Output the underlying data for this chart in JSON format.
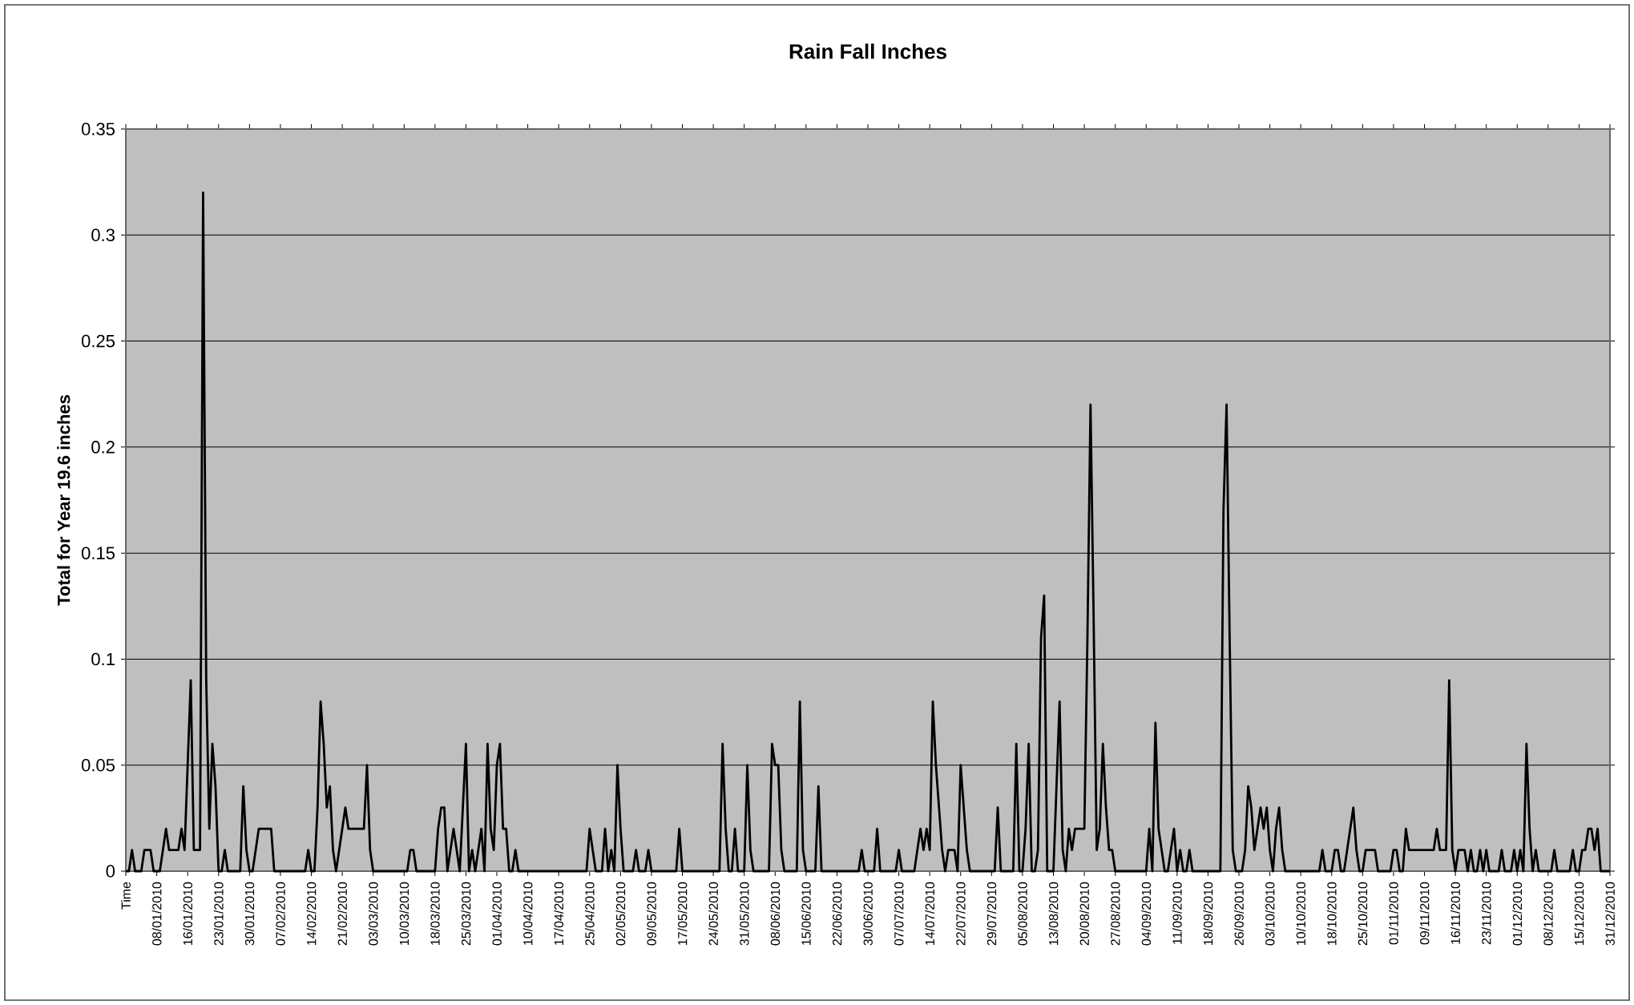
{
  "chart_data": {
    "type": "line",
    "title": "Rain Fall Inches",
    "ylabel": "Total for Year 19.6 inches",
    "color": "#000000",
    "grid": "y",
    "ylim": [
      0,
      0.35
    ],
    "yticks": [
      0,
      0.05,
      0.1,
      0.15,
      0.2,
      0.25,
      0.3,
      0.35
    ],
    "categories": [
      "Time",
      null,
      null,
      null,
      null,
      null,
      null,
      null,
      null,
      null,
      "08/01/2010",
      null,
      null,
      null,
      null,
      null,
      null,
      null,
      null,
      null,
      "16/01/2010",
      null,
      null,
      null,
      null,
      null,
      null,
      null,
      null,
      null,
      "23/01/2010",
      null,
      null,
      null,
      null,
      null,
      null,
      null,
      null,
      null,
      "30/01/2010",
      null,
      null,
      null,
      null,
      null,
      null,
      null,
      null,
      null,
      "07/02/2010",
      null,
      null,
      null,
      null,
      null,
      null,
      null,
      null,
      null,
      "14/02/2010",
      null,
      null,
      null,
      null,
      null,
      null,
      null,
      null,
      null,
      "21/02/2010",
      null,
      null,
      null,
      null,
      null,
      null,
      null,
      null,
      null,
      "03/03/2010",
      null,
      null,
      null,
      null,
      null,
      null,
      null,
      null,
      null,
      "10/03/2010",
      null,
      null,
      null,
      null,
      null,
      null,
      null,
      null,
      null,
      "18/03/2010",
      null,
      null,
      null,
      null,
      null,
      null,
      null,
      null,
      null,
      "25/03/2010",
      null,
      null,
      null,
      null,
      null,
      null,
      null,
      null,
      null,
      "01/04/2010",
      null,
      null,
      null,
      null,
      null,
      null,
      null,
      null,
      null,
      "10/04/2010",
      null,
      null,
      null,
      null,
      null,
      null,
      null,
      null,
      null,
      "17/04/2010",
      null,
      null,
      null,
      null,
      null,
      null,
      null,
      null,
      null,
      "25/04/2010",
      null,
      null,
      null,
      null,
      null,
      null,
      null,
      null,
      null,
      "02/05/2010",
      null,
      null,
      null,
      null,
      null,
      null,
      null,
      null,
      null,
      "09/05/2010",
      null,
      null,
      null,
      null,
      null,
      null,
      null,
      null,
      null,
      "17/05/2010",
      null,
      null,
      null,
      null,
      null,
      null,
      null,
      null,
      null,
      "24/05/2010",
      null,
      null,
      null,
      null,
      null,
      null,
      null,
      null,
      null,
      "31/05/2010",
      null,
      null,
      null,
      null,
      null,
      null,
      null,
      null,
      null,
      "08/06/2010",
      null,
      null,
      null,
      null,
      null,
      null,
      null,
      null,
      null,
      "15/06/2010",
      null,
      null,
      null,
      null,
      null,
      null,
      null,
      null,
      null,
      "22/06/2010",
      null,
      null,
      null,
      null,
      null,
      null,
      null,
      null,
      null,
      "30/06/2010",
      null,
      null,
      null,
      null,
      null,
      null,
      null,
      null,
      null,
      "07/07/2010",
      null,
      null,
      null,
      null,
      null,
      null,
      null,
      null,
      null,
      "14/07/2010",
      null,
      null,
      null,
      null,
      null,
      null,
      null,
      null,
      null,
      "22/07/2010",
      null,
      null,
      null,
      null,
      null,
      null,
      null,
      null,
      null,
      "29/07/2010",
      null,
      null,
      null,
      null,
      null,
      null,
      null,
      null,
      null,
      "05/08/2010",
      null,
      null,
      null,
      null,
      null,
      null,
      null,
      null,
      null,
      "13/08/2010",
      null,
      null,
      null,
      null,
      null,
      null,
      null,
      null,
      null,
      "20/08/2010",
      null,
      null,
      null,
      null,
      null,
      null,
      null,
      null,
      null,
      "27/08/2010",
      null,
      null,
      null,
      null,
      null,
      null,
      null,
      null,
      null,
      "04/09/2010",
      null,
      null,
      null,
      null,
      null,
      null,
      null,
      null,
      null,
      "11/09/2010",
      null,
      null,
      null,
      null,
      null,
      null,
      null,
      null,
      null,
      "18/09/2010",
      null,
      null,
      null,
      null,
      null,
      null,
      null,
      null,
      null,
      "26/09/2010",
      null,
      null,
      null,
      null,
      null,
      null,
      null,
      null,
      null,
      "03/10/2010",
      null,
      null,
      null,
      null,
      null,
      null,
      null,
      null,
      null,
      "10/10/2010",
      null,
      null,
      null,
      null,
      null,
      null,
      null,
      null,
      null,
      "18/10/2010",
      null,
      null,
      null,
      null,
      null,
      null,
      null,
      null,
      null,
      "25/10/2010",
      null,
      null,
      null,
      null,
      null,
      null,
      null,
      null,
      null,
      "01/11/2010",
      null,
      null,
      null,
      null,
      null,
      null,
      null,
      null,
      null,
      "09/11/2010",
      null,
      null,
      null,
      null,
      null,
      null,
      null,
      null,
      null,
      "16/11/2010",
      null,
      null,
      null,
      null,
      null,
      null,
      null,
      null,
      null,
      "23/11/2010",
      null,
      null,
      null,
      null,
      null,
      null,
      null,
      null,
      null,
      "01/12/2010",
      null,
      null,
      null,
      null,
      null,
      null,
      null,
      null,
      null,
      "08/12/2010",
      null,
      null,
      null,
      null,
      null,
      null,
      null,
      null,
      null,
      "15/12/2010",
      null,
      null,
      null,
      null,
      null,
      null,
      null,
      null,
      null,
      "31/12/2010"
    ],
    "values": [
      0,
      0,
      0.01,
      0,
      0,
      0,
      0.01,
      0.01,
      0.01,
      0,
      0,
      0,
      0.01,
      0.02,
      0.01,
      0.01,
      0.01,
      0.01,
      0.02,
      0.01,
      0.05,
      0.09,
      0.01,
      0.01,
      0.01,
      0.32,
      0.09,
      0.02,
      0.06,
      0.04,
      0,
      0,
      0.01,
      0,
      0,
      0,
      0,
      0,
      0.04,
      0.01,
      0,
      0,
      0.01,
      0.02,
      0.02,
      0.02,
      0.02,
      0.02,
      0,
      0,
      0,
      0,
      0,
      0,
      0,
      0,
      0,
      0,
      0,
      0.01,
      0,
      0,
      0.03,
      0.08,
      0.06,
      0.03,
      0.04,
      0.01,
      0,
      0.01,
      0.02,
      0.03,
      0.02,
      0.02,
      0.02,
      0.02,
      0.02,
      0.02,
      0.05,
      0.01,
      0,
      0,
      0,
      0,
      0,
      0,
      0,
      0,
      0,
      0,
      0,
      0,
      0.01,
      0.01,
      0,
      0,
      0,
      0,
      0,
      0,
      0,
      0.02,
      0.03,
      0.03,
      0,
      0.01,
      0.02,
      0.01,
      0,
      0.03,
      0.06,
      0,
      0.01,
      0,
      0.01,
      0.02,
      0,
      0.06,
      0.02,
      0.01,
      0.05,
      0.06,
      0.02,
      0.02,
      0,
      0,
      0.01,
      0,
      0,
      0,
      0,
      0,
      0,
      0,
      0,
      0,
      0,
      0,
      0,
      0,
      0,
      0,
      0,
      0,
      0,
      0,
      0,
      0,
      0,
      0,
      0.02,
      0.01,
      0,
      0,
      0,
      0.02,
      0,
      0.01,
      0,
      0.05,
      0.02,
      0,
      0,
      0,
      0,
      0.01,
      0,
      0,
      0,
      0.01,
      0,
      0,
      0,
      0,
      0,
      0,
      0,
      0,
      0,
      0.02,
      0,
      0,
      0,
      0,
      0,
      0,
      0,
      0,
      0,
      0,
      0,
      0,
      0,
      0.06,
      0.02,
      0,
      0,
      0.02,
      0,
      0,
      0,
      0.05,
      0.01,
      0,
      0,
      0,
      0,
      0,
      0,
      0.06,
      0.05,
      0.05,
      0.01,
      0,
      0,
      0,
      0,
      0,
      0.08,
      0.01,
      0,
      0,
      0,
      0,
      0.04,
      0,
      0,
      0,
      0,
      0,
      0,
      0,
      0,
      0,
      0,
      0,
      0,
      0,
      0.01,
      0,
      0,
      0,
      0,
      0.02,
      0,
      0,
      0,
      0,
      0,
      0,
      0.01,
      0,
      0,
      0,
      0,
      0,
      0.01,
      0.02,
      0.01,
      0.02,
      0.01,
      0.08,
      0.05,
      0.03,
      0.01,
      0,
      0.01,
      0.01,
      0.01,
      0,
      0.05,
      0.03,
      0.01,
      0,
      0,
      0,
      0,
      0,
      0,
      0,
      0,
      0,
      0.03,
      0,
      0,
      0,
      0,
      0,
      0.06,
      0,
      0,
      0.02,
      0.06,
      0,
      0,
      0.01,
      0.11,
      0.13,
      0,
      0,
      0,
      0.04,
      0.08,
      0.01,
      0,
      0.02,
      0.01,
      0.02,
      0.02,
      0.02,
      0.02,
      0.11,
      0.22,
      0.12,
      0.01,
      0.02,
      0.06,
      0.03,
      0.01,
      0.01,
      0,
      0,
      0,
      0,
      0,
      0,
      0,
      0,
      0,
      0,
      0,
      0.02,
      0,
      0.07,
      0.02,
      0.01,
      0,
      0,
      0.01,
      0.02,
      0,
      0.01,
      0,
      0,
      0.01,
      0,
      0,
      0,
      0,
      0,
      0,
      0,
      0,
      0,
      0,
      0.17,
      0.22,
      0.11,
      0.01,
      0,
      0,
      0,
      0.01,
      0.04,
      0.03,
      0.01,
      0.02,
      0.03,
      0.02,
      0.03,
      0.01,
      0,
      0.02,
      0.03,
      0.01,
      0,
      0,
      0,
      0,
      0,
      0,
      0,
      0,
      0,
      0,
      0,
      0,
      0.01,
      0,
      0,
      0,
      0.01,
      0.01,
      0,
      0,
      0.01,
      0.02,
      0.03,
      0.01,
      0,
      0,
      0.01,
      0.01,
      0.01,
      0.01,
      0,
      0,
      0,
      0,
      0,
      0.01,
      0.01,
      0,
      0,
      0.02,
      0.01,
      0.01,
      0.01,
      0.01,
      0.01,
      0.01,
      0.01,
      0.01,
      0.01,
      0.02,
      0.01,
      0.01,
      0.01,
      0.09,
      0.01,
      0,
      0.01,
      0.01,
      0.01,
      0,
      0.01,
      0,
      0,
      0.01,
      0,
      0.01,
      0,
      0,
      0,
      0,
      0.01,
      0,
      0,
      0,
      0.01,
      0,
      0.01,
      0,
      0.06,
      0.02,
      0,
      0.01,
      0,
      0,
      0,
      0,
      0,
      0.01,
      0,
      0,
      0,
      0,
      0,
      0.01,
      0,
      0,
      0.01,
      0.01,
      0.02,
      0.02,
      0.01,
      0.02,
      0,
      0,
      0,
      0
    ]
  }
}
